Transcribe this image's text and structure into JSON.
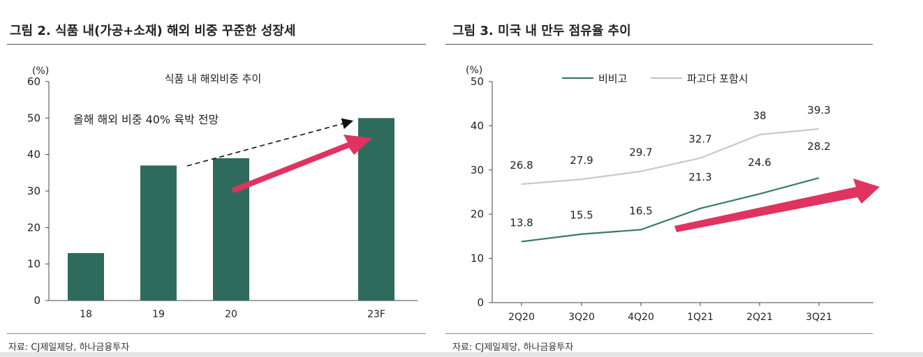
{
  "chart_data": [
    {
      "type": "bar",
      "figure_title": "그림 2. 식품 내(가공+소재) 해외 비중 꾸준한 성장세",
      "title": "식품 내 해외비중 추이",
      "annotation": "올해 해외 비중 40% 육박 전망",
      "ylabel": "(%)",
      "xlabel": "",
      "categories": [
        "18",
        "19",
        "20",
        "23F"
      ],
      "values": [
        13,
        37,
        39,
        50
      ],
      "ylim": [
        0,
        60
      ],
      "yticks": [
        "0",
        "10",
        "20",
        "30",
        "40",
        "50",
        "60"
      ],
      "bar_color": "#2e6b5c",
      "arrow_color": "#e0335f",
      "source": "자료: CJ제일제당, 하나금융투자"
    },
    {
      "type": "line",
      "figure_title": "그림 3. 미국 내 만두 점유율 추이",
      "ylabel": "(%)",
      "xlabel": "",
      "categories": [
        "2Q20",
        "3Q20",
        "4Q20",
        "1Q21",
        "2Q21",
        "3Q21"
      ],
      "ylim": [
        0,
        50
      ],
      "yticks": [
        "0",
        "10",
        "20",
        "30",
        "40",
        "50"
      ],
      "legend": "top",
      "series": [
        {
          "name": "비비고",
          "values": [
            13.8,
            15.5,
            16.5,
            21.3,
            24.6,
            28.2
          ],
          "labels": [
            "13.8",
            "15.5",
            "16.5",
            "21.3",
            "24.6",
            "28.2"
          ],
          "color": "#3a7a66"
        },
        {
          "name": "파고다 포함시",
          "values": [
            26.8,
            27.9,
            29.7,
            32.7,
            38,
            39.3
          ],
          "labels": [
            "26.8",
            "27.9",
            "29.7",
            "32.7",
            "38",
            "39.3"
          ],
          "color": "#c8c8c8"
        }
      ],
      "arrow_color": "#e0335f",
      "source": "자료: CJ제일제당, 하나금융투자"
    }
  ]
}
